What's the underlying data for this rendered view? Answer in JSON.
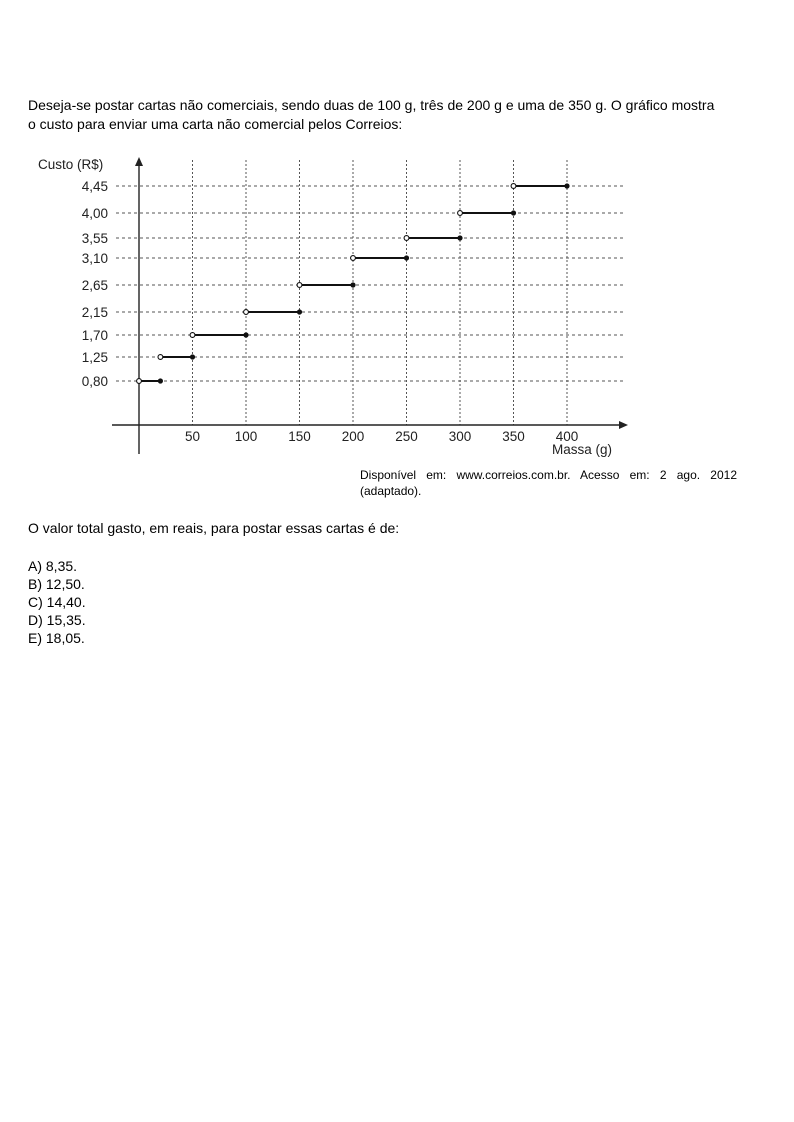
{
  "intro": {
    "line1": "Deseja-se postar cartas não comerciais, sendo duas de 100 g, três de 200 g e uma de 350 g. O gráfico mostra",
    "line2": "o custo para enviar uma carta não comercial pelos Correios:"
  },
  "chart_data": {
    "type": "line",
    "ylabel": "Custo (R$)",
    "xlabel": "Massa (g)",
    "x_ticks": [
      "50",
      "100",
      "150",
      "200",
      "250",
      "300",
      "350",
      "400"
    ],
    "y_ticks": [
      "0,80",
      "1,25",
      "1,70",
      "2,15",
      "2,65",
      "3,10",
      "3,55",
      "4,00",
      "4,45"
    ],
    "xlim": [
      0,
      400
    ],
    "grid": true,
    "steps": [
      {
        "x_start": 0,
        "x_end": 20,
        "y": 0.8
      },
      {
        "x_start": 20,
        "x_end": 50,
        "y": 1.25
      },
      {
        "x_start": 50,
        "x_end": 100,
        "y": 1.7
      },
      {
        "x_start": 100,
        "x_end": 150,
        "y": 2.15
      },
      {
        "x_start": 150,
        "x_end": 200,
        "y": 2.65
      },
      {
        "x_start": 200,
        "x_end": 250,
        "y": 3.1
      },
      {
        "x_start": 250,
        "x_end": 300,
        "y": 3.55
      },
      {
        "x_start": 300,
        "x_end": 350,
        "y": 4.0
      },
      {
        "x_start": 350,
        "x_end": 400,
        "y": 4.45
      }
    ],
    "open_marker": "left",
    "closed_marker": "right"
  },
  "source": "Disponível em: www.correios.com.br. Acesso em: 2 ago. 2012 (adaptado).",
  "question": "O valor total gasto, em reais, para postar essas cartas é de:",
  "options": [
    "A) 8,35.",
    "B) 12,50.",
    "C) 14,40.",
    "D) 15,35.",
    "E) 18,05."
  ]
}
